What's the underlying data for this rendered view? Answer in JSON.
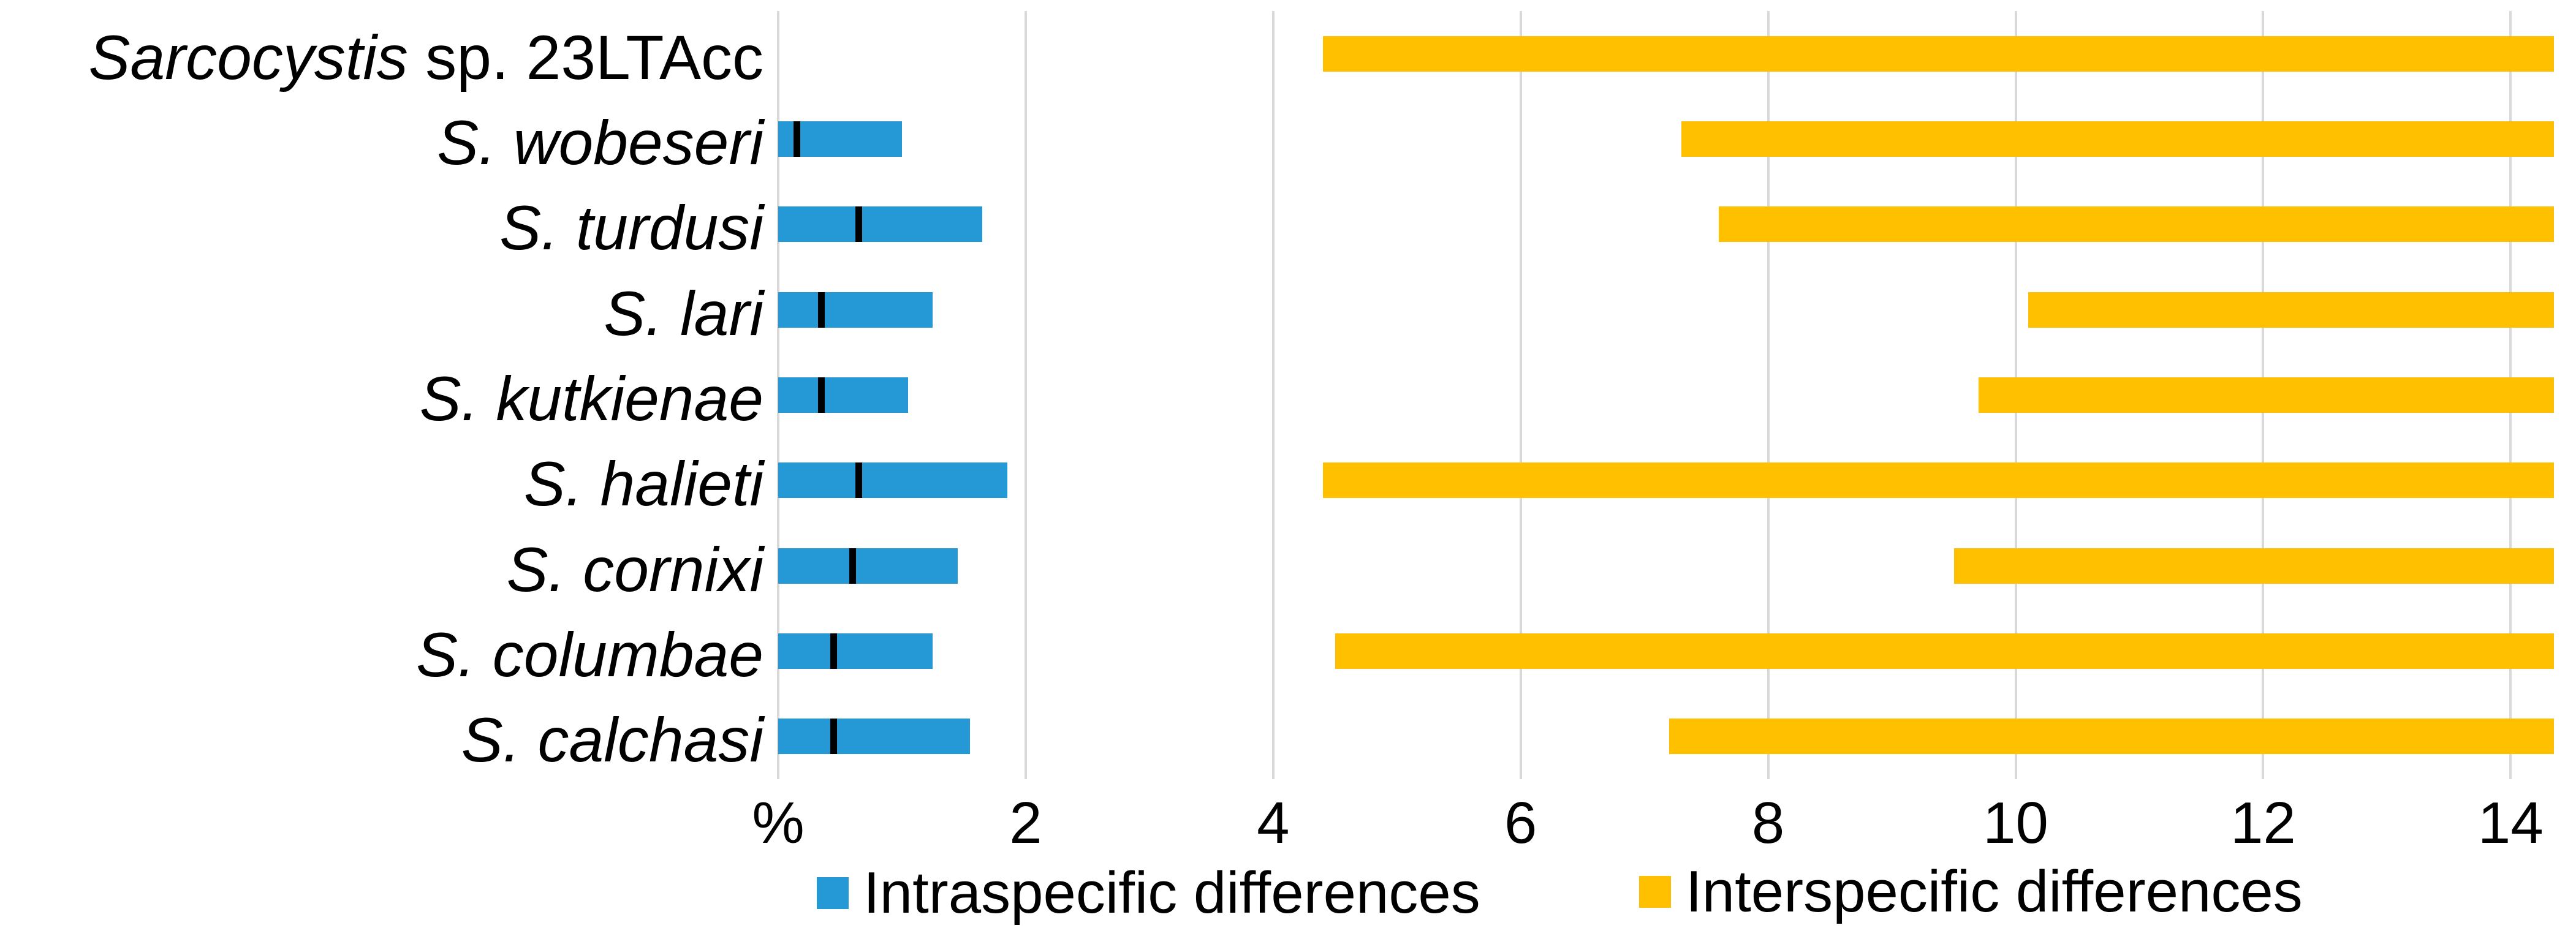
{
  "chart_data": {
    "type": "bar",
    "subtype": "horizontal-range-bars",
    "title": "",
    "xlabel": "%",
    "ylabel": "",
    "xlim": [
      0,
      14.35
    ],
    "grid": "vertical-light-gray",
    "gridline_color": "#D9D9D9",
    "background_color": "#FFFFFF",
    "text_color": "#000000",
    "x_ticks": [
      {
        "value": 0,
        "label": "%"
      },
      {
        "value": 2,
        "label": "2"
      },
      {
        "value": 4,
        "label": "4"
      },
      {
        "value": 6,
        "label": "6"
      },
      {
        "value": 8,
        "label": "8"
      },
      {
        "value": 10,
        "label": "10"
      },
      {
        "value": 12,
        "label": "12"
      },
      {
        "value": 14,
        "label": "14"
      }
    ],
    "categories": [
      {
        "italic": "Sarcocystis",
        "regular": " sp. 23LTAcc"
      },
      {
        "italic": "S. wobeseri",
        "regular": ""
      },
      {
        "italic": "S. turdusi",
        "regular": ""
      },
      {
        "italic": "S. lari",
        "regular": ""
      },
      {
        "italic": "S. kutkienae",
        "regular": ""
      },
      {
        "italic": "S. halieti",
        "regular": ""
      },
      {
        "italic": "S. cornixi",
        "regular": ""
      },
      {
        "italic": "S. columbae",
        "regular": ""
      },
      {
        "italic": "S. calchasi",
        "regular": ""
      }
    ],
    "series": [
      {
        "name": "Intraspecific differences",
        "color": "#2499D6",
        "marker_color": "#000000",
        "ranges": [
          null,
          {
            "min": 0,
            "max": 1.0,
            "mean": 0.15
          },
          {
            "min": 0,
            "max": 1.65,
            "mean": 0.65
          },
          {
            "min": 0,
            "max": 1.25,
            "mean": 0.35
          },
          {
            "min": 0,
            "max": 1.05,
            "mean": 0.35
          },
          {
            "min": 0,
            "max": 1.85,
            "mean": 0.65
          },
          {
            "min": 0,
            "max": 1.45,
            "mean": 0.6
          },
          {
            "min": 0,
            "max": 1.25,
            "mean": 0.45
          },
          {
            "min": 0,
            "max": 1.55,
            "mean": 0.45
          }
        ]
      },
      {
        "name": "Interspecific differences",
        "color": "#FFC000",
        "ranges": [
          {
            "min": 4.4,
            "max": 14.35
          },
          {
            "min": 7.3,
            "max": 14.35
          },
          {
            "min": 7.6,
            "max": 14.35
          },
          {
            "min": 10.1,
            "max": 14.35
          },
          {
            "min": 9.7,
            "max": 14.35
          },
          {
            "min": 4.4,
            "max": 14.35
          },
          {
            "min": 9.5,
            "max": 14.35
          },
          {
            "min": 4.5,
            "max": 14.35
          },
          {
            "min": 7.2,
            "max": 14.35
          }
        ]
      }
    ]
  },
  "legend": {
    "items": [
      {
        "label": "Intraspecific differences",
        "color": "#2499D6"
      },
      {
        "label": "Interspecific differences",
        "color": "#FFC000"
      }
    ]
  }
}
